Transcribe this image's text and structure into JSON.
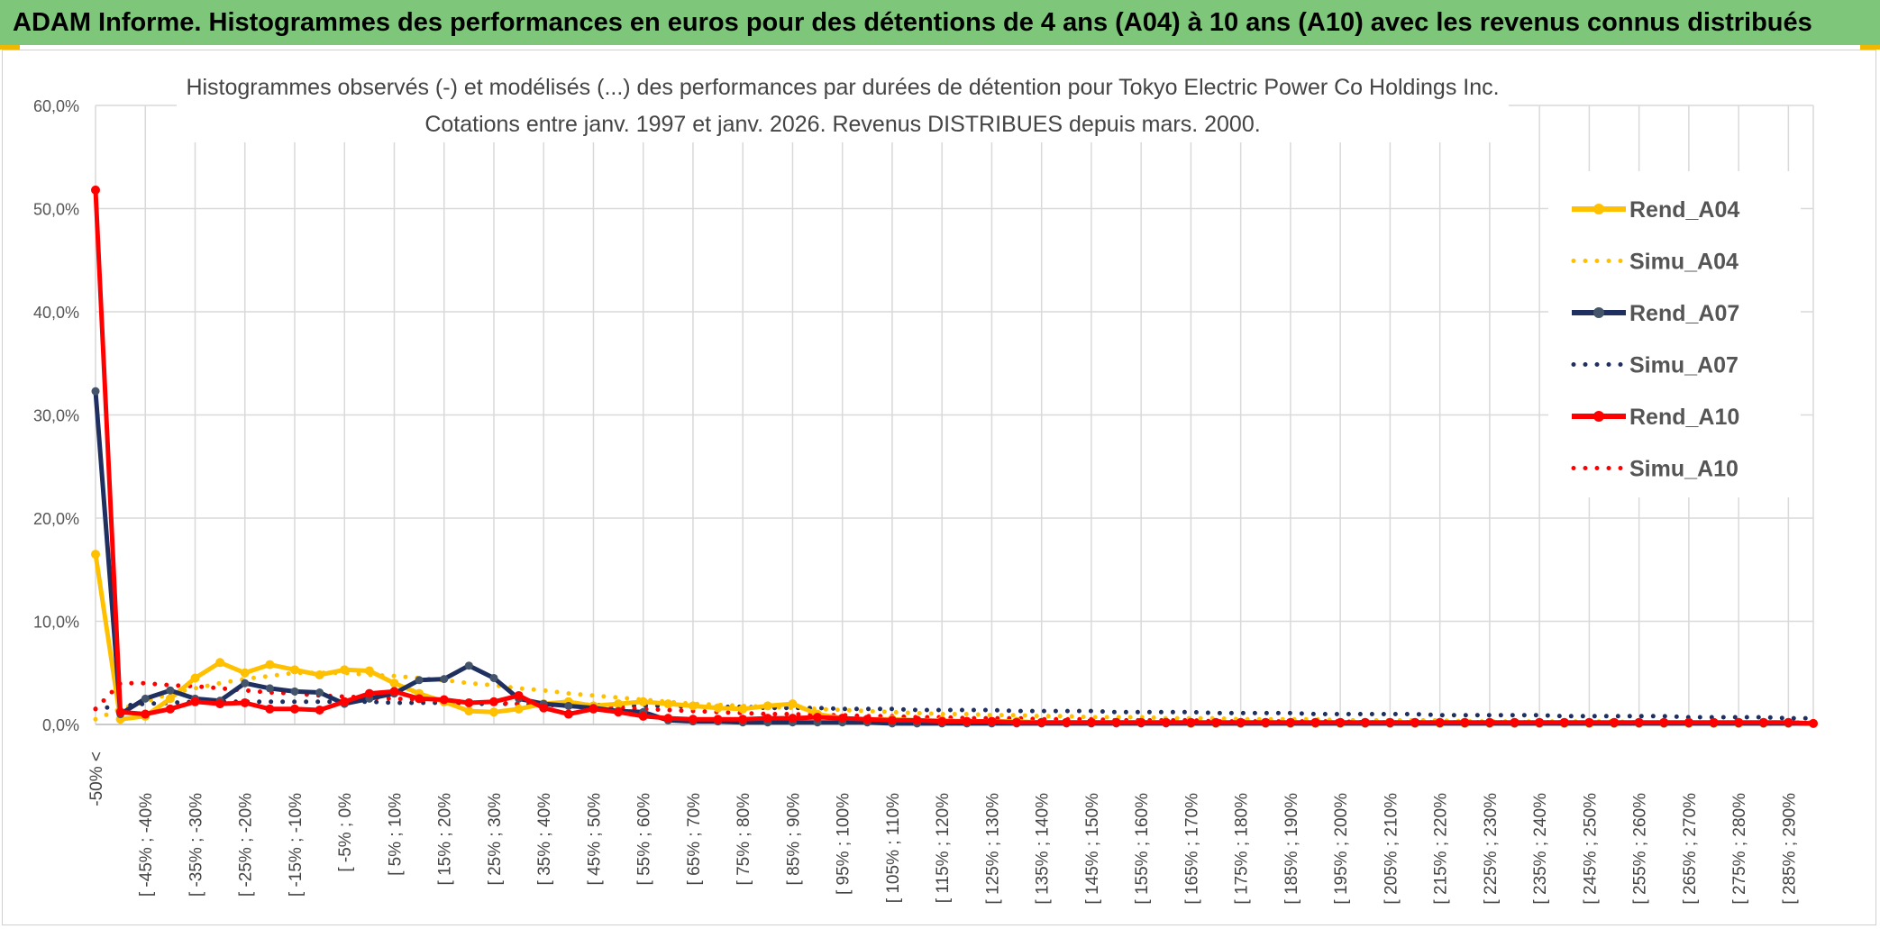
{
  "banner": {
    "title": "ADAM Informe. Histogrammes des performances en euros pour des détentions de 4 ans (A04) à 10 ans (A10) avec les revenus connus distribués"
  },
  "colors": {
    "banner_bg": "#7dc67a",
    "a04": "#ffc000",
    "a07": "#1f3060",
    "a10": "#ff0000",
    "grid": "#d9d9d9"
  },
  "chart_data": {
    "type": "line",
    "title_line1": "Histogrammes observés (-) et modélisés (...) des performances par durées de détention pour Tokyo Electric Power Co Holdings Inc.",
    "title_line2": "Cotations entre janv. 1997 et janv. 2026. Revenus DISTRIBUES depuis mars. 2000.",
    "ylim": [
      0,
      60
    ],
    "y_ticks": [
      "0,0%",
      "10,0%",
      "20,0%",
      "30,0%",
      "40,0%",
      "50,0%",
      "60,0%"
    ],
    "x_tick_labels": [
      "-50% <",
      "[ -45% ; -40%",
      "[ -35% ; -30%",
      "[ -25% ; -20%",
      "[ -15% ; -10%",
      "[ -5% ; 0%",
      "[ 5% ; 10%",
      "[ 15% ; 20%",
      "[ 25% ; 30%",
      "[ 35% ; 40%",
      "[ 45% ; 50%",
      "[ 55% ; 60%",
      "[ 65% ; 70%",
      "[ 75% ; 80%",
      "[ 85% ; 90%",
      "[ 95% ; 100%",
      "[ 105% ; 110%",
      "[ 115% ; 120%",
      "[ 125% ; 130%",
      "[ 135% ; 140%",
      "[ 145% ; 150%",
      "[ 155% ; 160%",
      "[ 165% ; 170%",
      "[ 175% ; 180%",
      "[ 185% ; 190%",
      "[ 195% ; 200%",
      "[ 205% ; 210%",
      "[ 215% ; 220%",
      "[ 225% ; 230%",
      "[ 235% ; 240%",
      "[ 245% ; 250%",
      "[ 255% ; 260%",
      "[ 265% ; 270%",
      "[ 275% ; 280%",
      "[ 285% ; 290%"
    ],
    "point_count": 70,
    "legend": [
      {
        "label": "Rend_A04",
        "color": "#ffc000",
        "style": "solid"
      },
      {
        "label": "Simu_A04",
        "color": "#ffc000",
        "style": "dotted"
      },
      {
        "label": "Rend_A07",
        "color": "#1f3060",
        "style": "solid"
      },
      {
        "label": "Simu_A07",
        "color": "#1f3060",
        "style": "dotted"
      },
      {
        "label": "Rend_A10",
        "color": "#ff0000",
        "style": "solid"
      },
      {
        "label": "Simu_A10",
        "color": "#ff0000",
        "style": "dotted"
      }
    ],
    "series": [
      {
        "name": "Rend_A04",
        "color": "#ffc000",
        "style": "solid",
        "values": [
          16.5,
          0.5,
          0.8,
          2.5,
          4.5,
          6.0,
          5.0,
          5.8,
          5.3,
          4.8,
          5.3,
          5.2,
          4.0,
          3.0,
          2.2,
          1.3,
          1.2,
          1.5,
          2.0,
          2.2,
          1.8,
          2.0,
          2.2,
          2.0,
          1.8,
          1.6,
          1.5,
          1.8,
          2.0,
          1.0,
          0.6,
          0.5,
          0.5,
          0.4,
          0.4,
          0.3,
          0.3,
          0.3,
          0.2,
          0.2,
          0.2,
          0.2,
          0.2,
          0.2,
          0.1,
          0.1,
          0.1,
          0.1,
          0.1,
          0.1,
          0.1,
          0.1,
          0.1,
          0.1,
          0.1,
          0.1,
          0.1,
          0.1,
          0.1,
          0.1,
          0.1,
          0.1,
          0.1,
          0.1,
          0.1,
          0.1,
          0.1,
          0.1,
          0.1,
          0.1
        ]
      },
      {
        "name": "Simu_A04",
        "color": "#ffc000",
        "style": "dotted",
        "values": [
          0.5,
          1.5,
          2.2,
          3.0,
          3.5,
          4.0,
          4.4,
          4.7,
          5.0,
          5.0,
          5.0,
          4.8,
          4.7,
          4.5,
          4.3,
          4.0,
          3.8,
          3.5,
          3.3,
          3.0,
          2.8,
          2.6,
          2.4,
          2.2,
          2.0,
          1.9,
          1.8,
          1.7,
          1.6,
          1.5,
          1.4,
          1.3,
          1.2,
          1.1,
          1.0,
          1.0,
          0.9,
          0.9,
          0.8,
          0.8,
          0.7,
          0.7,
          0.7,
          0.6,
          0.6,
          0.6,
          0.5,
          0.5,
          0.5,
          0.5,
          0.4,
          0.4,
          0.4,
          0.4,
          0.4,
          0.3,
          0.3,
          0.3,
          0.3,
          0.3,
          0.3,
          0.3,
          0.2,
          0.2,
          0.2,
          0.2,
          0.2,
          0.2,
          0.2,
          0.2
        ]
      },
      {
        "name": "Rend_A07",
        "color": "#1f3060",
        "style": "solid",
        "values": [
          32.3,
          1.0,
          2.5,
          3.3,
          2.5,
          2.3,
          4.0,
          3.5,
          3.2,
          3.1,
          2.0,
          2.5,
          3.0,
          4.3,
          4.4,
          5.7,
          4.5,
          2.5,
          2.0,
          1.8,
          1.6,
          1.3,
          1.2,
          0.4,
          0.3,
          0.3,
          0.2,
          0.2,
          0.2,
          0.2,
          0.2,
          0.2,
          0.1,
          0.1,
          0.1,
          0.1,
          0.1,
          0.1,
          0.1,
          0.1,
          0.1,
          0.1,
          0.1,
          0.1,
          0.1,
          0.1,
          0.1,
          0.1,
          0.1,
          0.1,
          0.1,
          0.1,
          0.1,
          0.1,
          0.1,
          0.1,
          0.1,
          0.1,
          0.1,
          0.1,
          0.1,
          0.1,
          0.1,
          0.1,
          0.1,
          0.1,
          0.1,
          0.1,
          0.1,
          0.1
        ]
      },
      {
        "name": "Simu_A07",
        "color": "#1f3060",
        "style": "dotted",
        "values": [
          1.5,
          1.8,
          2.0,
          2.1,
          2.2,
          2.2,
          2.2,
          2.2,
          2.2,
          2.2,
          2.2,
          2.2,
          2.1,
          2.1,
          2.1,
          2.0,
          2.0,
          2.0,
          1.9,
          1.9,
          1.9,
          1.8,
          1.8,
          1.8,
          1.7,
          1.7,
          1.7,
          1.6,
          1.6,
          1.6,
          1.5,
          1.5,
          1.5,
          1.4,
          1.4,
          1.4,
          1.4,
          1.3,
          1.3,
          1.3,
          1.3,
          1.2,
          1.2,
          1.2,
          1.2,
          1.1,
          1.1,
          1.1,
          1.1,
          1.0,
          1.0,
          1.0,
          1.0,
          1.0,
          0.9,
          0.9,
          0.9,
          0.9,
          0.9,
          0.8,
          0.8,
          0.8,
          0.8,
          0.8,
          0.7,
          0.7,
          0.7,
          0.7,
          0.6,
          0.6
        ]
      },
      {
        "name": "Rend_A10",
        "color": "#ff0000",
        "style": "solid",
        "values": [
          51.8,
          1.2,
          1.0,
          1.5,
          2.2,
          2.0,
          2.1,
          1.5,
          1.5,
          1.4,
          2.2,
          3.0,
          3.2,
          2.5,
          2.4,
          2.1,
          2.2,
          2.8,
          1.6,
          1.0,
          1.5,
          1.2,
          0.8,
          0.6,
          0.5,
          0.5,
          0.5,
          0.6,
          0.6,
          0.7,
          0.6,
          0.5,
          0.4,
          0.4,
          0.3,
          0.3,
          0.3,
          0.2,
          0.2,
          0.2,
          0.2,
          0.2,
          0.2,
          0.2,
          0.2,
          0.2,
          0.2,
          0.2,
          0.2,
          0.2,
          0.2,
          0.2,
          0.2,
          0.2,
          0.2,
          0.2,
          0.2,
          0.2,
          0.2,
          0.2,
          0.2,
          0.2,
          0.2,
          0.2,
          0.2,
          0.2,
          0.2,
          0.2,
          0.2,
          0.1
        ]
      },
      {
        "name": "Simu_A10",
        "color": "#ff0000",
        "style": "dotted",
        "values": [
          1.5,
          4.0,
          4.0,
          3.8,
          3.7,
          3.5,
          3.3,
          3.1,
          3.0,
          2.8,
          2.7,
          2.6,
          2.5,
          2.4,
          2.3,
          2.2,
          2.1,
          2.0,
          1.9,
          1.8,
          1.7,
          1.6,
          1.5,
          1.4,
          1.3,
          1.2,
          1.1,
          1.0,
          1.0,
          0.9,
          0.9,
          0.8,
          0.8,
          0.7,
          0.7,
          0.6,
          0.6,
          0.6,
          0.5,
          0.5,
          0.5,
          0.4,
          0.4,
          0.4,
          0.4,
          0.3,
          0.3,
          0.3,
          0.3,
          0.3,
          0.3,
          0.2,
          0.2,
          0.2,
          0.2,
          0.2,
          0.2,
          0.2,
          0.2,
          0.2,
          0.1,
          0.1,
          0.1,
          0.1,
          0.1,
          0.1,
          0.1,
          0.1,
          0.1,
          0.1
        ]
      }
    ]
  }
}
